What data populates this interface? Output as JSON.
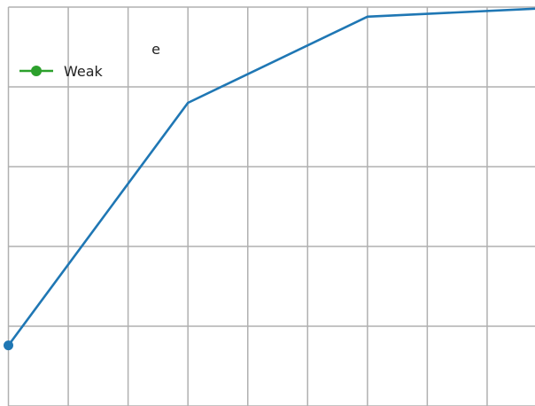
{
  "chart_data": {
    "type": "line",
    "title": "e",
    "xlim": [
      0,
      8.8
    ],
    "ylim": [
      0,
      5
    ],
    "x_ticks": [
      0,
      1,
      2,
      3,
      4,
      5,
      6,
      7,
      8
    ],
    "y_ticks": [
      0,
      1,
      2,
      3,
      4,
      5
    ],
    "grid": true,
    "legend_position": "top-left",
    "series": [
      {
        "x": [
          0,
          3,
          6,
          8.8
        ],
        "y": [
          0.76,
          3.8,
          4.88,
          4.98
        ],
        "color": "#1f77b4",
        "marker": "o"
      }
    ],
    "legend": [
      {
        "label": "Weak",
        "color": "#2ca02c",
        "marker": "o"
      }
    ]
  }
}
